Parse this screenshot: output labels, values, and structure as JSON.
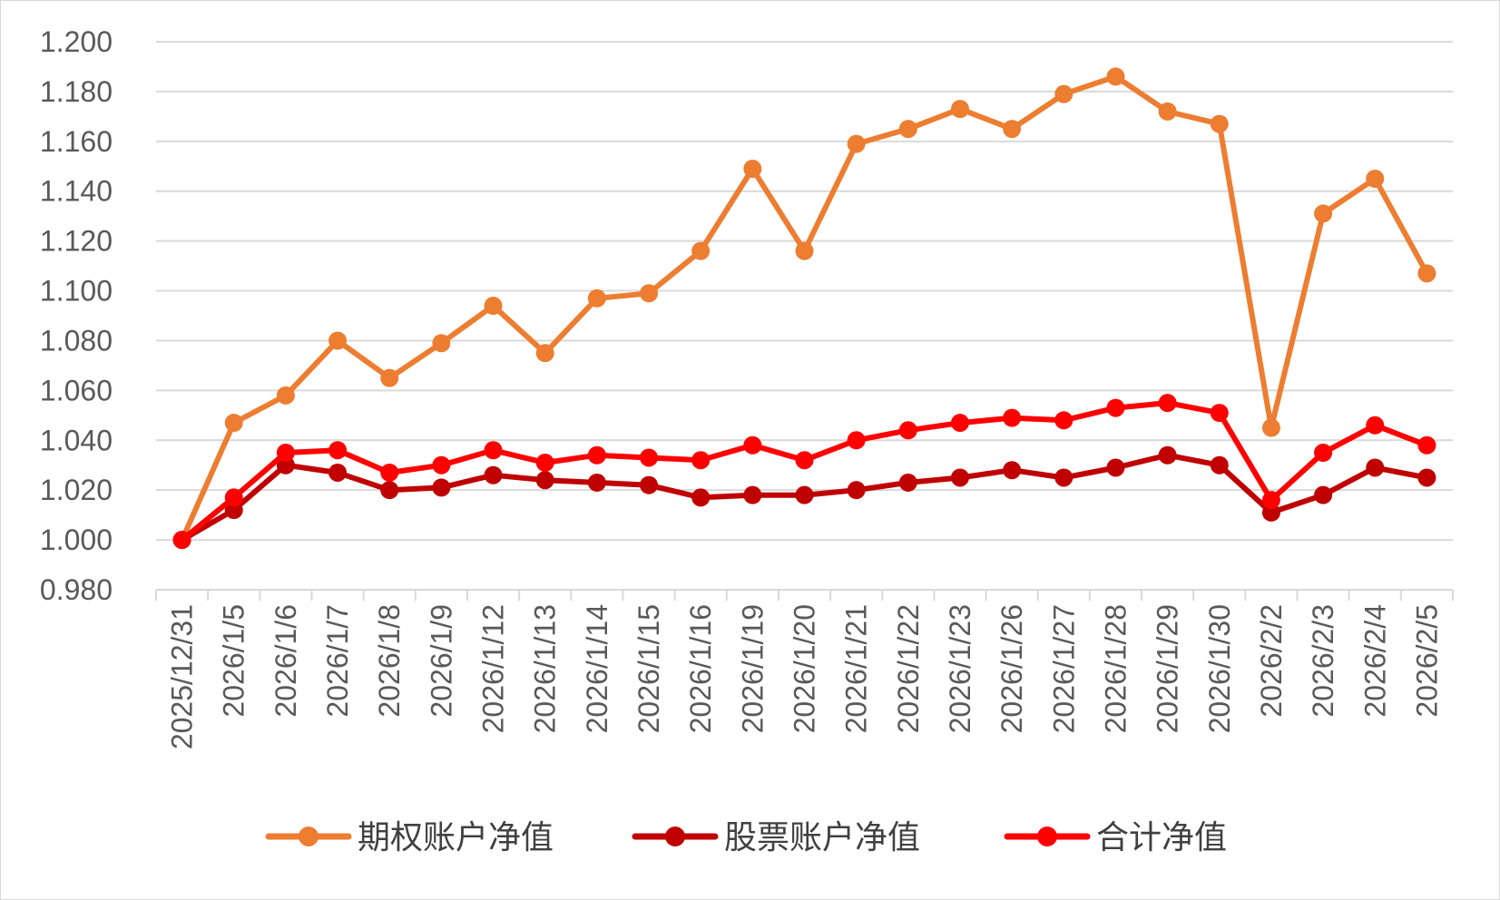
{
  "chart_data": {
    "type": "line",
    "title": "",
    "xlabel": "",
    "ylabel": "",
    "ylim": [
      0.98,
      1.2
    ],
    "y_ticks": [
      "0.980",
      "1.000",
      "1.020",
      "1.040",
      "1.060",
      "1.080",
      "1.100",
      "1.120",
      "1.140",
      "1.160",
      "1.180",
      "1.200"
    ],
    "grid": "horizontal",
    "legend_position": "bottom",
    "categories": [
      "2025/12/31",
      "2026/1/5",
      "2026/1/6",
      "2026/1/7",
      "2026/1/8",
      "2026/1/9",
      "2026/1/12",
      "2026/1/13",
      "2026/1/14",
      "2026/1/15",
      "2026/1/16",
      "2026/1/19",
      "2026/1/20",
      "2026/1/21",
      "2026/1/22",
      "2026/1/23",
      "2026/1/26",
      "2026/1/27",
      "2026/1/28",
      "2026/1/29",
      "2026/1/30",
      "2026/2/2",
      "2026/2/3",
      "2026/2/4",
      "2026/2/5"
    ],
    "series": [
      {
        "name": "期权账户净值",
        "color": "#ED7D31",
        "values": [
          1.0,
          1.047,
          1.058,
          1.08,
          1.065,
          1.079,
          1.094,
          1.075,
          1.097,
          1.099,
          1.116,
          1.149,
          1.116,
          1.159,
          1.165,
          1.173,
          1.165,
          1.179,
          1.186,
          1.172,
          1.167,
          1.045,
          1.131,
          1.145,
          1.107
        ]
      },
      {
        "name": "股票账户净值",
        "color": "#C00000",
        "values": [
          1.0,
          1.012,
          1.03,
          1.027,
          1.02,
          1.021,
          1.026,
          1.024,
          1.023,
          1.022,
          1.017,
          1.018,
          1.018,
          1.02,
          1.023,
          1.025,
          1.028,
          1.025,
          1.029,
          1.034,
          1.03,
          1.011,
          1.018,
          1.029,
          1.025
        ]
      },
      {
        "name": "合计净值",
        "color": "#FF0000",
        "values": [
          1.0,
          1.017,
          1.035,
          1.036,
          1.027,
          1.03,
          1.036,
          1.031,
          1.034,
          1.033,
          1.032,
          1.038,
          1.032,
          1.04,
          1.044,
          1.047,
          1.049,
          1.048,
          1.053,
          1.055,
          1.051,
          1.016,
          1.035,
          1.046,
          1.038
        ]
      }
    ]
  }
}
